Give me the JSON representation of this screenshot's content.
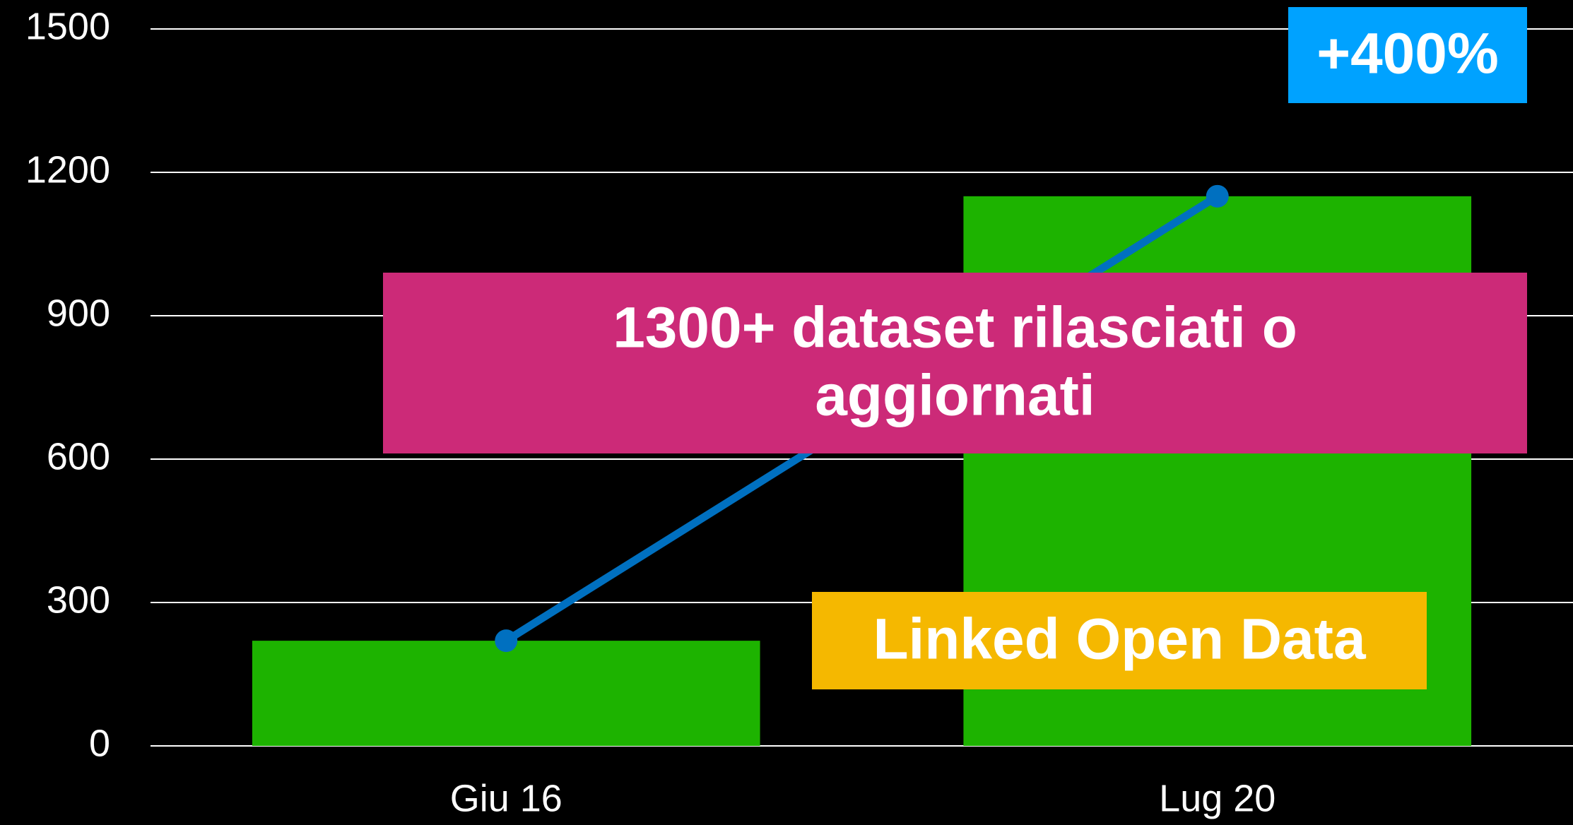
{
  "chart_data": {
    "type": "bar",
    "categories": [
      "Giu 16",
      "Lug 20"
    ],
    "series": [
      {
        "type": "bar",
        "color": "#1db300",
        "values": [
          220,
          1150
        ]
      },
      {
        "type": "line",
        "color": "#0070c0",
        "values": [
          220,
          1150
        ]
      }
    ],
    "ylim": [
      0,
      1500
    ],
    "yticks": [
      0,
      300,
      600,
      900,
      1200,
      1500
    ],
    "grid": true,
    "annotations": [
      {
        "text": "+400%",
        "color": "#00a2ff"
      },
      {
        "text": [
          "1300+ dataset rilasciati o",
          "aggiornati"
        ],
        "color": "#cc2a78"
      },
      {
        "text": "Linked Open Data",
        "color": "#f5b800"
      }
    ]
  }
}
